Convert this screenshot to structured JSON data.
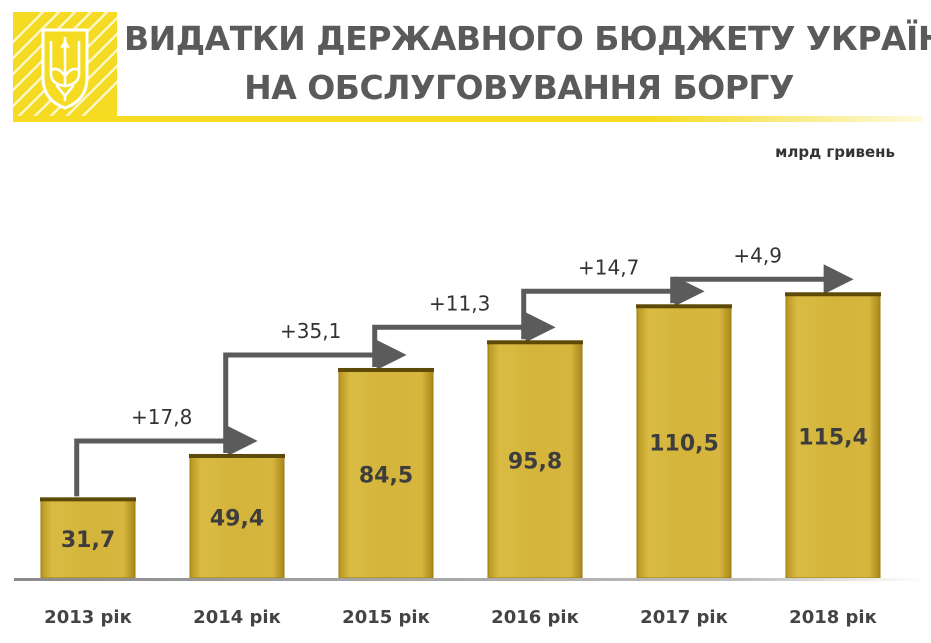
{
  "header": {
    "title_line1": "ВИДАТКИ ДЕРЖАВНОГО БЮДЖЕТУ УКРАЇНИ",
    "title_line2": "НА ОБСЛУГОВУВАННЯ БОРГУ",
    "logo_icon": "trident-coat-of-arms-icon"
  },
  "unit_label": "млрд гривень",
  "colors": {
    "brand_yellow": "#f5dc23",
    "bar_fill": "#d4b43a",
    "bar_edge": "#9a7d14",
    "arrow": "#5b5b5b",
    "title_text": "#5a5a5a"
  },
  "chart_data": {
    "type": "bar",
    "categories": [
      "2013 рік",
      "2014 рік",
      "2015 рік",
      "2016 рік",
      "2017 рік",
      "2018 рік"
    ],
    "values": [
      31.7,
      49.4,
      84.5,
      95.8,
      110.5,
      115.4
    ],
    "value_labels": [
      "31,7",
      "49,4",
      "84,5",
      "95,8",
      "110,5",
      "115,4"
    ],
    "increments": [
      "+17,8",
      "+35,1",
      "+11,3",
      "+14,7",
      "+4,9"
    ],
    "title": "ВИДАТКИ ДЕРЖАВНОГО БЮДЖЕТУ УКРАЇНИ НА ОБСЛУГОВУВАННЯ БОРГУ",
    "ylabel": "млрд гривень",
    "ylim": [
      0,
      120
    ],
    "grid": false,
    "legend": "none"
  }
}
